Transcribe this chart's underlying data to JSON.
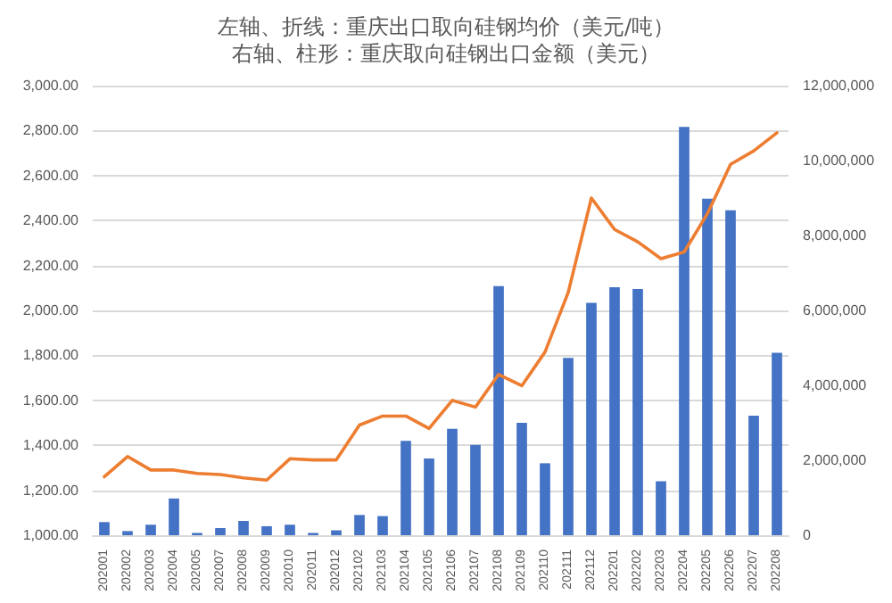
{
  "chart_data": {
    "type": "bar",
    "title": "左轴、折线：重庆出口取向硅钢均价（美元/吨）",
    "subtitle": "右轴、柱形：重庆取向硅钢出口金额（美元）",
    "categories": [
      "202001",
      "202002",
      "202003",
      "202004",
      "202005",
      "202007",
      "202008",
      "202009",
      "202010",
      "202011",
      "202012",
      "202102",
      "202103",
      "202104",
      "202105",
      "202106",
      "202107",
      "202108",
      "202109",
      "202110",
      "202111",
      "202112",
      "202201",
      "202202",
      "202203",
      "202204",
      "202205",
      "202206",
      "202207",
      "202208"
    ],
    "series": [
      {
        "axis": "y2",
        "color": "#4472c4",
        "values": [
          350000,
          110000,
          280000,
          980000,
          60000,
          190000,
          380000,
          240000,
          280000,
          60000,
          130000,
          540000,
          510000,
          2520000,
          2050000,
          2840000,
          2410000,
          6650000,
          3000000,
          1920000,
          4730000,
          6200000,
          6620000,
          6570000,
          1440000,
          10900000,
          8980000,
          8670000,
          3190000,
          4870000
        ]
      },
      {
        "type": "line",
        "color": "#ed7d31",
        "marker": "none",
        "values": [
          1260,
          1350,
          1290,
          1290,
          1275,
          1270,
          1255,
          1245,
          1340,
          1335,
          1335,
          1490,
          1530,
          1530,
          1475,
          1600,
          1570,
          1715,
          1665,
          1815,
          2080,
          2500,
          2360,
          2305,
          2230,
          2260,
          2430,
          2650,
          2710,
          2790
        ]
      }
    ],
    "ylim": [
      1000,
      3000
    ],
    "yticks": [
      {
        "value": 1000,
        "label": "1,000.00"
      },
      {
        "value": 1200,
        "label": "1,200.00"
      },
      {
        "value": 1400,
        "label": "1,400.00"
      },
      {
        "value": 1600,
        "label": "1,600.00"
      },
      {
        "value": 1800,
        "label": "1,800.00"
      },
      {
        "value": 2000,
        "label": "2,000.00"
      },
      {
        "value": 2200,
        "label": "2,200.00"
      },
      {
        "value": 2400,
        "label": "2,400.00"
      },
      {
        "value": 2600,
        "label": "2,600.00"
      },
      {
        "value": 2800,
        "label": "2,800.00"
      },
      {
        "value": 3000,
        "label": "3,000.00"
      }
    ],
    "y2lim": [
      0,
      12000000
    ],
    "y2ticks": [
      0,
      {
        "value": 2000000,
        "label": "2,000,000"
      },
      {
        "value": 4000000,
        "label": "4,000,000"
      },
      {
        "value": 6000000,
        "label": "6,000,000"
      },
      {
        "value": 8000000,
        "label": "8,000,000"
      },
      {
        "value": 10000000,
        "label": "10,000,000"
      },
      {
        "value": 12000000,
        "label": "12,000,000"
      }
    ],
    "grid": "y"
  }
}
